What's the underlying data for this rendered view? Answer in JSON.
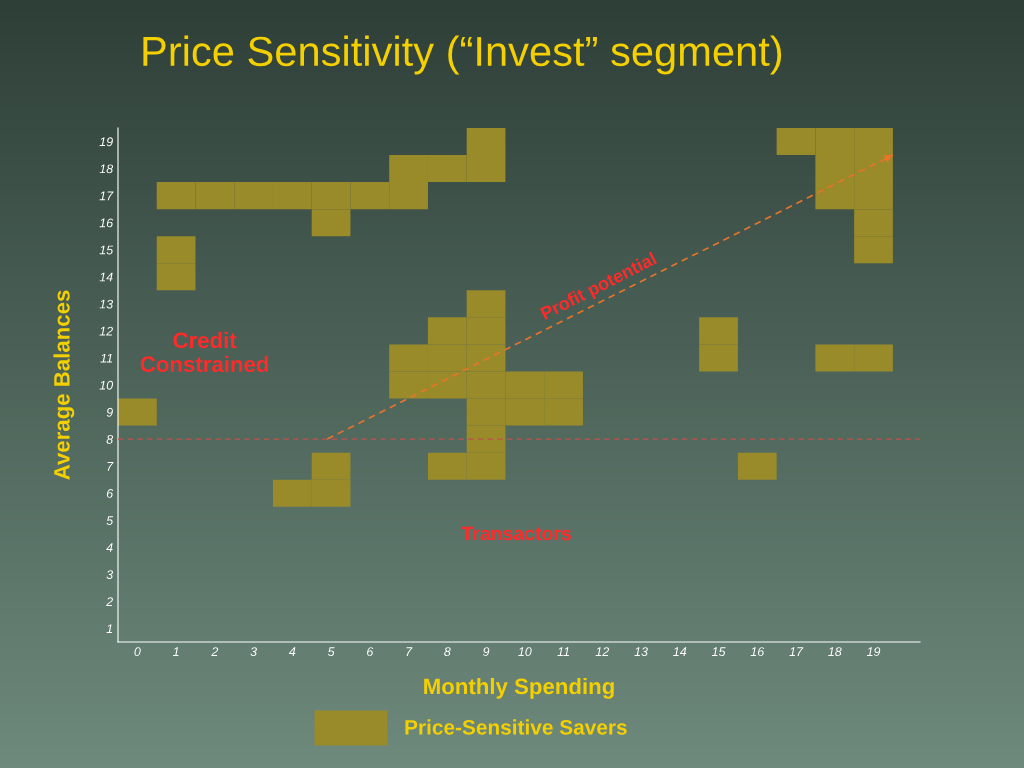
{
  "chart_data": {
    "type": "scatter",
    "title": "Price Sensitivity (“Invest” segment)",
    "xlabel": "Monthly Spending",
    "ylabel": "Average Balances",
    "xlim": [
      -0.5,
      20.2
    ],
    "ylim": [
      0.5,
      19.5
    ],
    "xticks": [
      0,
      1,
      2,
      3,
      4,
      5,
      6,
      7,
      8,
      9,
      10,
      11,
      12,
      13,
      14,
      15,
      16,
      17,
      18,
      19
    ],
    "yticks": [
      1,
      2,
      3,
      4,
      5,
      6,
      7,
      8,
      9,
      10,
      11,
      12,
      13,
      14,
      15,
      16,
      17,
      18,
      19
    ],
    "marker": "square",
    "series": [
      {
        "name": "Price-Sensitive Savers",
        "color": "#9a8b2a",
        "x": [
          9,
          17,
          18,
          19,
          7,
          8,
          9,
          18,
          19,
          1,
          2,
          3,
          4,
          5,
          6,
          7,
          18,
          19,
          5,
          19,
          1,
          19,
          1,
          9,
          8,
          9,
          15,
          7,
          8,
          9,
          15,
          18,
          19,
          7,
          8,
          9,
          10,
          11,
          0,
          9,
          10,
          11,
          9,
          5,
          8,
          9,
          16,
          4,
          5
        ],
        "values": [
          19,
          19,
          19,
          19,
          18,
          18,
          18,
          18,
          18,
          17,
          17,
          17,
          17,
          17,
          17,
          17,
          17,
          17,
          16,
          16,
          15,
          15,
          14,
          13,
          12,
          12,
          12,
          11,
          11,
          11,
          11,
          11,
          11,
          10,
          10,
          10,
          10,
          10,
          9,
          9,
          9,
          9,
          8,
          7,
          7,
          7,
          7,
          6,
          6
        ]
      },
      {
        "type": "line",
        "color": "#e8742a",
        "line_style": "dashed",
        "marker": "none",
        "x": [
          4.9,
          19.5
        ],
        "values": [
          8,
          18.5
        ]
      }
    ],
    "ref_lines": [
      {
        "axis": "y",
        "value": 8,
        "color": "#c0504d",
        "line_style": "dashed"
      }
    ],
    "annotations": [
      "Credit\nConstrained",
      "Transactors",
      "Profit potential"
    ],
    "legend": "bottom"
  }
}
